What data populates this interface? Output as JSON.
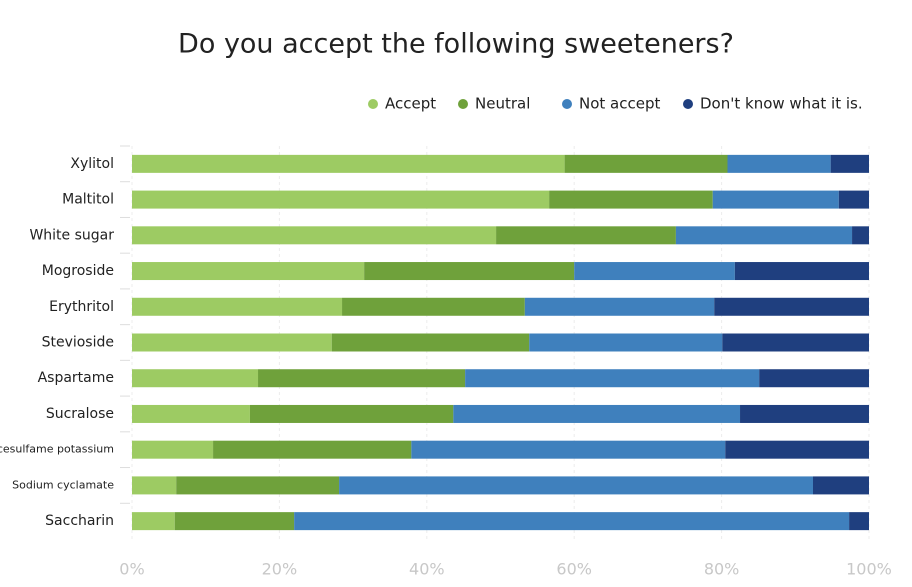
{
  "chart_data": {
    "type": "stacked-barh",
    "title": "Do you accept the following sweeteners?",
    "categories": [
      "Xylitol",
      "Maltitol",
      "White sugar",
      "Mogroside",
      "Erythritol",
      "Stevioside",
      "Aspartame",
      "Sucralose",
      "Acesulfame potassium",
      "Sodium cyclamate",
      "Saccharin"
    ],
    "series": [
      {
        "name": "Accept",
        "color": "#9dcb63",
        "values": [
          58.7,
          56.6,
          49.4,
          31.5,
          28.5,
          27.1,
          17.1,
          16.0,
          11.0,
          6.0,
          5.8
        ]
      },
      {
        "name": "Neutral",
        "color": "#6fa13b",
        "values": [
          22.1,
          22.2,
          24.4,
          28.5,
          24.8,
          26.8,
          28.1,
          27.6,
          26.9,
          22.1,
          16.2
        ]
      },
      {
        "name": "Not accept",
        "color": "#3f80bd",
        "values": [
          14.0,
          17.1,
          23.9,
          21.8,
          25.7,
          26.2,
          39.9,
          38.9,
          42.6,
          64.3,
          75.3
        ]
      },
      {
        "name": "Don't know what it is.",
        "color": "#1f3f7f",
        "values": [
          5.2,
          4.1,
          2.3,
          18.2,
          21.0,
          19.9,
          14.9,
          17.5,
          19.5,
          7.6,
          2.7
        ]
      }
    ],
    "xlim": [
      0,
      100
    ],
    "xticks": [
      {
        "value": 0,
        "label": "0%"
      },
      {
        "value": 20,
        "label": "20%"
      },
      {
        "value": 40,
        "label": "40%"
      },
      {
        "value": 60,
        "label": "60%"
      },
      {
        "value": 80,
        "label": "80%"
      },
      {
        "value": 100,
        "label": "100%"
      }
    ],
    "grid": true
  }
}
